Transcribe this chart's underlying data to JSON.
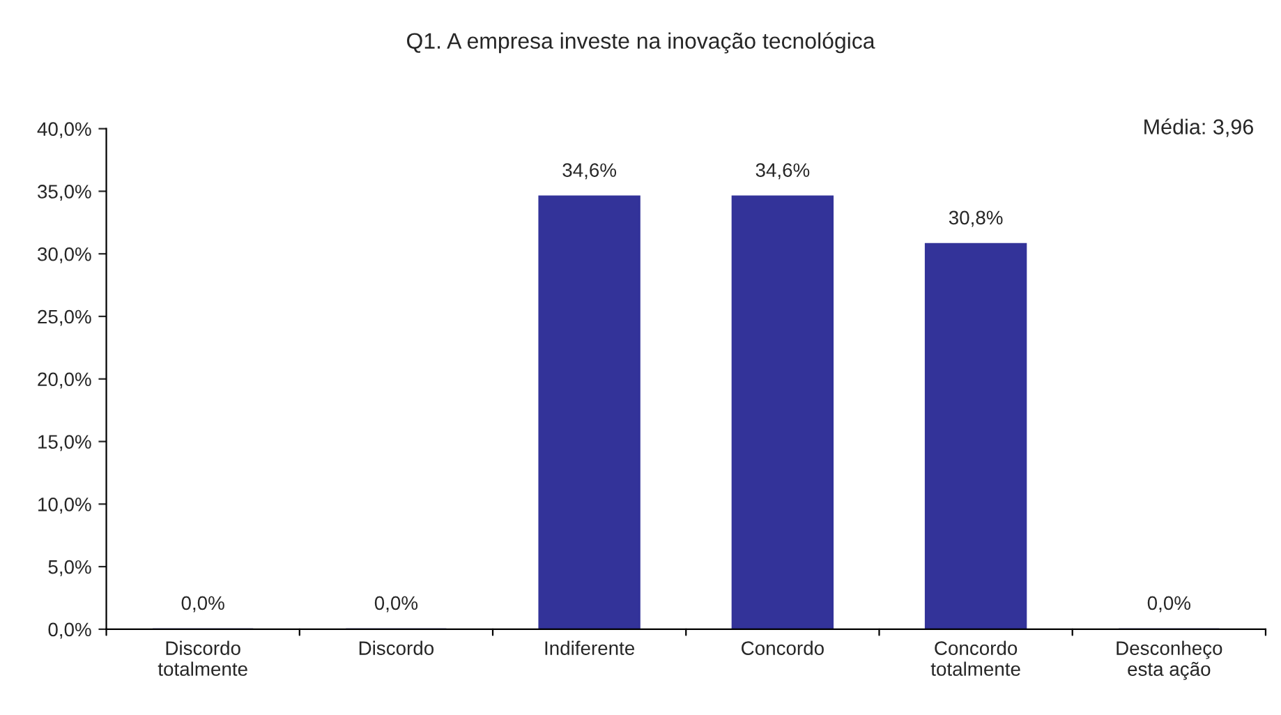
{
  "chart_data": {
    "type": "bar",
    "title": "Q1. A empresa investe na inovação tecnológica",
    "categories": [
      "Discordo\ntotalmente",
      "Discordo",
      "Indiferente",
      "Concordo",
      "Concordo\ntotalmente",
      "Desconheço\nesta ação"
    ],
    "values": [
      0,
      0,
      34.6,
      34.6,
      30.8,
      0
    ],
    "value_labels": [
      "0,0%",
      "0,0%",
      "34,6%",
      "34,6%",
      "30,8%",
      "0,0%"
    ],
    "color": "#333399",
    "ylim": [
      0,
      40
    ],
    "yticks": [
      {
        "value": 0,
        "label": "0,0%"
      },
      {
        "value": 5,
        "label": "5,0%"
      },
      {
        "value": 10,
        "label": "10,0%"
      },
      {
        "value": 15,
        "label": "15,0%"
      },
      {
        "value": 20,
        "label": "20,0%"
      },
      {
        "value": 25,
        "label": "25,0%"
      },
      {
        "value": 30,
        "label": "30,0%"
      },
      {
        "value": 35,
        "label": "35,0%"
      },
      {
        "value": 40,
        "label": "40,0%"
      }
    ],
    "annotations": [
      "Média: 3,96"
    ],
    "grid": false
  }
}
